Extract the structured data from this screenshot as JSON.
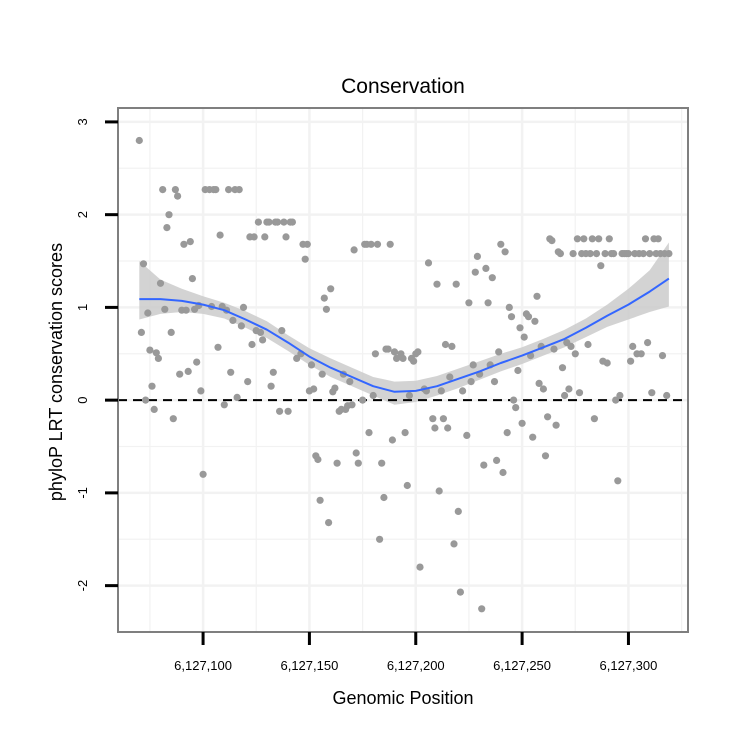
{
  "chart_data": {
    "type": "scatter",
    "title": "Conservation",
    "xlabel": "Genomic Position",
    "ylabel": "phyloP LRT conservation scores",
    "xlim": [
      6127060,
      6127328
    ],
    "ylim": [
      -2.5,
      3.15
    ],
    "x_ticks": [
      {
        "value": 6127100,
        "label": "6,127,100"
      },
      {
        "value": 6127150,
        "label": "6,127,150"
      },
      {
        "value": 6127200,
        "label": "6,127,200"
      },
      {
        "value": 6127250,
        "label": "6,127,250"
      },
      {
        "value": 6127300,
        "label": "6,127,300"
      }
    ],
    "y_ticks": [
      {
        "value": 3,
        "label": "3"
      },
      {
        "value": 2,
        "label": "2"
      },
      {
        "value": 1,
        "label": "1"
      },
      {
        "value": 0,
        "label": "0"
      },
      {
        "value": -1,
        "label": "-1"
      },
      {
        "value": -2,
        "label": "-2"
      }
    ],
    "reference_line": {
      "y": 0,
      "style": "dashed"
    },
    "colors": {
      "points": "#999999",
      "smooth": "#3366ff",
      "band": "#c8c8c8",
      "frame": "#7f7f7f",
      "grid": "#f2f2f2"
    },
    "points": [
      [
        6127070,
        2.8
      ],
      [
        6127071,
        0.73
      ],
      [
        6127072,
        1.47
      ],
      [
        6127073,
        0.0
      ],
      [
        6127074,
        0.94
      ],
      [
        6127075,
        0.54
      ],
      [
        6127076,
        0.15
      ],
      [
        6127077,
        -0.1
      ],
      [
        6127078,
        0.51
      ],
      [
        6127079,
        0.45
      ],
      [
        6127080,
        1.26
      ],
      [
        6127081,
        2.27
      ],
      [
        6127082,
        0.98
      ],
      [
        6127083,
        1.86
      ],
      [
        6127084,
        2.0
      ],
      [
        6127085,
        0.73
      ],
      [
        6127086,
        -0.2
      ],
      [
        6127087,
        2.27
      ],
      [
        6127088,
        2.2
      ],
      [
        6127089,
        0.28
      ],
      [
        6127090,
        0.97
      ],
      [
        6127091,
        1.68
      ],
      [
        6127092,
        0.97
      ],
      [
        6127093,
        0.31
      ],
      [
        6127094,
        1.71
      ],
      [
        6127095,
        1.31
      ],
      [
        6127096,
        0.98
      ],
      [
        6127097,
        0.41
      ],
      [
        6127098,
        1.02
      ],
      [
        6127099,
        0.1
      ],
      [
        6127100,
        -0.8
      ],
      [
        6127101,
        2.27
      ],
      [
        6127103,
        2.27
      ],
      [
        6127104,
        1.01
      ],
      [
        6127105,
        2.27
      ],
      [
        6127106,
        2.27
      ],
      [
        6127107,
        0.57
      ],
      [
        6127108,
        1.78
      ],
      [
        6127109,
        1.01
      ],
      [
        6127110,
        -0.05
      ],
      [
        6127111,
        0.97
      ],
      [
        6127112,
        2.27
      ],
      [
        6127113,
        0.3
      ],
      [
        6127114,
        0.86
      ],
      [
        6127115,
        2.27
      ],
      [
        6127116,
        0.03
      ],
      [
        6127117,
        2.27
      ],
      [
        6127118,
        0.8
      ],
      [
        6127119,
        1.0
      ],
      [
        6127121,
        0.2
      ],
      [
        6127122,
        1.76
      ],
      [
        6127123,
        0.6
      ],
      [
        6127124,
        1.76
      ],
      [
        6127125,
        0.75
      ],
      [
        6127126,
        1.92
      ],
      [
        6127127,
        0.73
      ],
      [
        6127128,
        0.65
      ],
      [
        6127129,
        1.76
      ],
      [
        6127130,
        1.92
      ],
      [
        6127131,
        1.92
      ],
      [
        6127132,
        0.15
      ],
      [
        6127133,
        0.3
      ],
      [
        6127134,
        1.92
      ],
      [
        6127135,
        1.92
      ],
      [
        6127136,
        -0.12
      ],
      [
        6127137,
        0.75
      ],
      [
        6127138,
        1.92
      ],
      [
        6127139,
        1.76
      ],
      [
        6127140,
        -0.12
      ],
      [
        6127141,
        1.92
      ],
      [
        6127142,
        1.92
      ],
      [
        6127144,
        0.45
      ],
      [
        6127146,
        0.5
      ],
      [
        6127147,
        1.68
      ],
      [
        6127148,
        1.52
      ],
      [
        6127149,
        1.68
      ],
      [
        6127150,
        0.1
      ],
      [
        6127151,
        0.38
      ],
      [
        6127152,
        0.12
      ],
      [
        6127153,
        -0.6
      ],
      [
        6127154,
        -0.64
      ],
      [
        6127155,
        -1.08
      ],
      [
        6127156,
        0.28
      ],
      [
        6127157,
        1.1
      ],
      [
        6127158,
        0.98
      ],
      [
        6127159,
        -1.32
      ],
      [
        6127160,
        1.2
      ],
      [
        6127161,
        0.09
      ],
      [
        6127162,
        0.13
      ],
      [
        6127163,
        -0.68
      ],
      [
        6127164,
        -0.12
      ],
      [
        6127165,
        -0.1
      ],
      [
        6127166,
        0.28
      ],
      [
        6127167,
        -0.1
      ],
      [
        6127168,
        -0.06
      ],
      [
        6127169,
        0.2
      ],
      [
        6127170,
        -0.05
      ],
      [
        6127171,
        1.62
      ],
      [
        6127172,
        -0.57
      ],
      [
        6127173,
        -0.68
      ],
      [
        6127175,
        0.0
      ],
      [
        6127176,
        1.68
      ],
      [
        6127177,
        1.68
      ],
      [
        6127178,
        -0.35
      ],
      [
        6127179,
        1.68
      ],
      [
        6127180,
        0.05
      ],
      [
        6127181,
        0.5
      ],
      [
        6127182,
        1.68
      ],
      [
        6127183,
        -1.5
      ],
      [
        6127184,
        -0.68
      ],
      [
        6127185,
        -1.05
      ],
      [
        6127186,
        0.55
      ],
      [
        6127187,
        0.55
      ],
      [
        6127188,
        1.68
      ],
      [
        6127189,
        -0.43
      ],
      [
        6127190,
        0.52
      ],
      [
        6127191,
        0.45
      ],
      [
        6127193,
        0.5
      ],
      [
        6127194,
        0.45
      ],
      [
        6127195,
        -0.35
      ],
      [
        6127196,
        -0.92
      ],
      [
        6127197,
        0.05
      ],
      [
        6127198,
        0.45
      ],
      [
        6127199,
        0.42
      ],
      [
        6127200,
        0.5
      ],
      [
        6127201,
        0.52
      ],
      [
        6127202,
        -1.8
      ],
      [
        6127204,
        0.12
      ],
      [
        6127205,
        0.1
      ],
      [
        6127206,
        1.48
      ],
      [
        6127208,
        -0.2
      ],
      [
        6127209,
        -0.3
      ],
      [
        6127210,
        1.25
      ],
      [
        6127211,
        -0.98
      ],
      [
        6127212,
        0.1
      ],
      [
        6127213,
        -0.2
      ],
      [
        6127214,
        0.6
      ],
      [
        6127215,
        -0.3
      ],
      [
        6127216,
        0.25
      ],
      [
        6127217,
        0.58
      ],
      [
        6127218,
        -1.55
      ],
      [
        6127219,
        1.25
      ],
      [
        6127220,
        -1.2
      ],
      [
        6127221,
        -2.07
      ],
      [
        6127222,
        0.1
      ],
      [
        6127224,
        -0.38
      ],
      [
        6127225,
        1.05
      ],
      [
        6127226,
        0.2
      ],
      [
        6127227,
        0.38
      ],
      [
        6127228,
        1.38
      ],
      [
        6127229,
        1.55
      ],
      [
        6127230,
        0.28
      ],
      [
        6127231,
        -2.25
      ],
      [
        6127232,
        -0.7
      ],
      [
        6127233,
        1.42
      ],
      [
        6127234,
        1.05
      ],
      [
        6127235,
        0.38
      ],
      [
        6127236,
        1.32
      ],
      [
        6127237,
        0.2
      ],
      [
        6127238,
        -0.65
      ],
      [
        6127239,
        0.52
      ],
      [
        6127240,
        1.68
      ],
      [
        6127241,
        -0.78
      ],
      [
        6127242,
        1.6
      ],
      [
        6127243,
        -0.35
      ],
      [
        6127244,
        1.0
      ],
      [
        6127245,
        0.9
      ],
      [
        6127246,
        0.0
      ],
      [
        6127247,
        -0.08
      ],
      [
        6127248,
        0.32
      ],
      [
        6127249,
        0.78
      ],
      [
        6127250,
        -0.25
      ],
      [
        6127251,
        0.68
      ],
      [
        6127252,
        0.93
      ],
      [
        6127253,
        0.9
      ],
      [
        6127254,
        0.48
      ],
      [
        6127255,
        -0.4
      ],
      [
        6127256,
        0.85
      ],
      [
        6127257,
        1.12
      ],
      [
        6127258,
        0.18
      ],
      [
        6127259,
        0.58
      ],
      [
        6127260,
        0.12
      ],
      [
        6127261,
        -0.6
      ],
      [
        6127262,
        -0.18
      ],
      [
        6127263,
        1.74
      ],
      [
        6127264,
        1.72
      ],
      [
        6127265,
        0.55
      ],
      [
        6127266,
        -0.27
      ],
      [
        6127267,
        1.6
      ],
      [
        6127268,
        1.58
      ],
      [
        6127269,
        0.35
      ],
      [
        6127270,
        0.05
      ],
      [
        6127271,
        0.62
      ],
      [
        6127272,
        0.12
      ],
      [
        6127273,
        0.58
      ],
      [
        6127274,
        1.58
      ],
      [
        6127275,
        0.5
      ],
      [
        6127276,
        1.74
      ],
      [
        6127277,
        0.08
      ],
      [
        6127278,
        1.58
      ],
      [
        6127279,
        1.74
      ],
      [
        6127280,
        1.58
      ],
      [
        6127281,
        0.6
      ],
      [
        6127282,
        1.58
      ],
      [
        6127283,
        1.74
      ],
      [
        6127284,
        -0.2
      ],
      [
        6127285,
        1.58
      ],
      [
        6127286,
        1.74
      ],
      [
        6127287,
        1.45
      ],
      [
        6127288,
        0.42
      ],
      [
        6127289,
        1.58
      ],
      [
        6127290,
        0.4
      ],
      [
        6127291,
        1.74
      ],
      [
        6127292,
        1.58
      ],
      [
        6127293,
        1.58
      ],
      [
        6127294,
        0.0
      ],
      [
        6127295,
        -0.87
      ],
      [
        6127296,
        0.05
      ],
      [
        6127297,
        1.58
      ],
      [
        6127298,
        1.58
      ],
      [
        6127299,
        1.58
      ],
      [
        6127300,
        1.58
      ],
      [
        6127301,
        0.42
      ],
      [
        6127302,
        0.58
      ],
      [
        6127303,
        1.58
      ],
      [
        6127304,
        0.5
      ],
      [
        6127305,
        1.58
      ],
      [
        6127306,
        0.5
      ],
      [
        6127307,
        1.58
      ],
      [
        6127308,
        1.74
      ],
      [
        6127309,
        0.62
      ],
      [
        6127310,
        1.58
      ],
      [
        6127311,
        0.08
      ],
      [
        6127312,
        1.74
      ],
      [
        6127313,
        1.58
      ],
      [
        6127314,
        1.74
      ],
      [
        6127315,
        1.58
      ],
      [
        6127316,
        0.48
      ],
      [
        6127317,
        1.58
      ],
      [
        6127318,
        0.05
      ],
      [
        6127319,
        1.58
      ]
    ],
    "smooth": {
      "x": [
        6127070,
        6127080,
        6127090,
        6127100,
        6127110,
        6127120,
        6127130,
        6127140,
        6127150,
        6127160,
        6127170,
        6127180,
        6127190,
        6127200,
        6127210,
        6127220,
        6127230,
        6127240,
        6127250,
        6127260,
        6127270,
        6127280,
        6127290,
        6127300,
        6127310,
        6127319
      ],
      "y": [
        1.09,
        1.09,
        1.07,
        1.03,
        0.97,
        0.87,
        0.76,
        0.62,
        0.47,
        0.35,
        0.25,
        0.15,
        0.09,
        0.1,
        0.15,
        0.23,
        0.31,
        0.4,
        0.48,
        0.57,
        0.66,
        0.78,
        0.91,
        1.03,
        1.17,
        1.31
      ],
      "lower": [
        0.87,
        0.93,
        0.95,
        0.93,
        0.88,
        0.78,
        0.67,
        0.53,
        0.38,
        0.25,
        0.15,
        0.05,
        -0.05,
        -0.02,
        0.05,
        0.13,
        0.22,
        0.31,
        0.39,
        0.48,
        0.57,
        0.68,
        0.79,
        0.87,
        0.95,
        1.01
      ],
      "upper": [
        1.5,
        1.3,
        1.2,
        1.12,
        1.05,
        0.96,
        0.85,
        0.7,
        0.56,
        0.45,
        0.35,
        0.25,
        0.2,
        0.21,
        0.26,
        0.34,
        0.42,
        0.5,
        0.57,
        0.66,
        0.76,
        0.88,
        1.03,
        1.2,
        1.4,
        1.7
      ]
    }
  }
}
